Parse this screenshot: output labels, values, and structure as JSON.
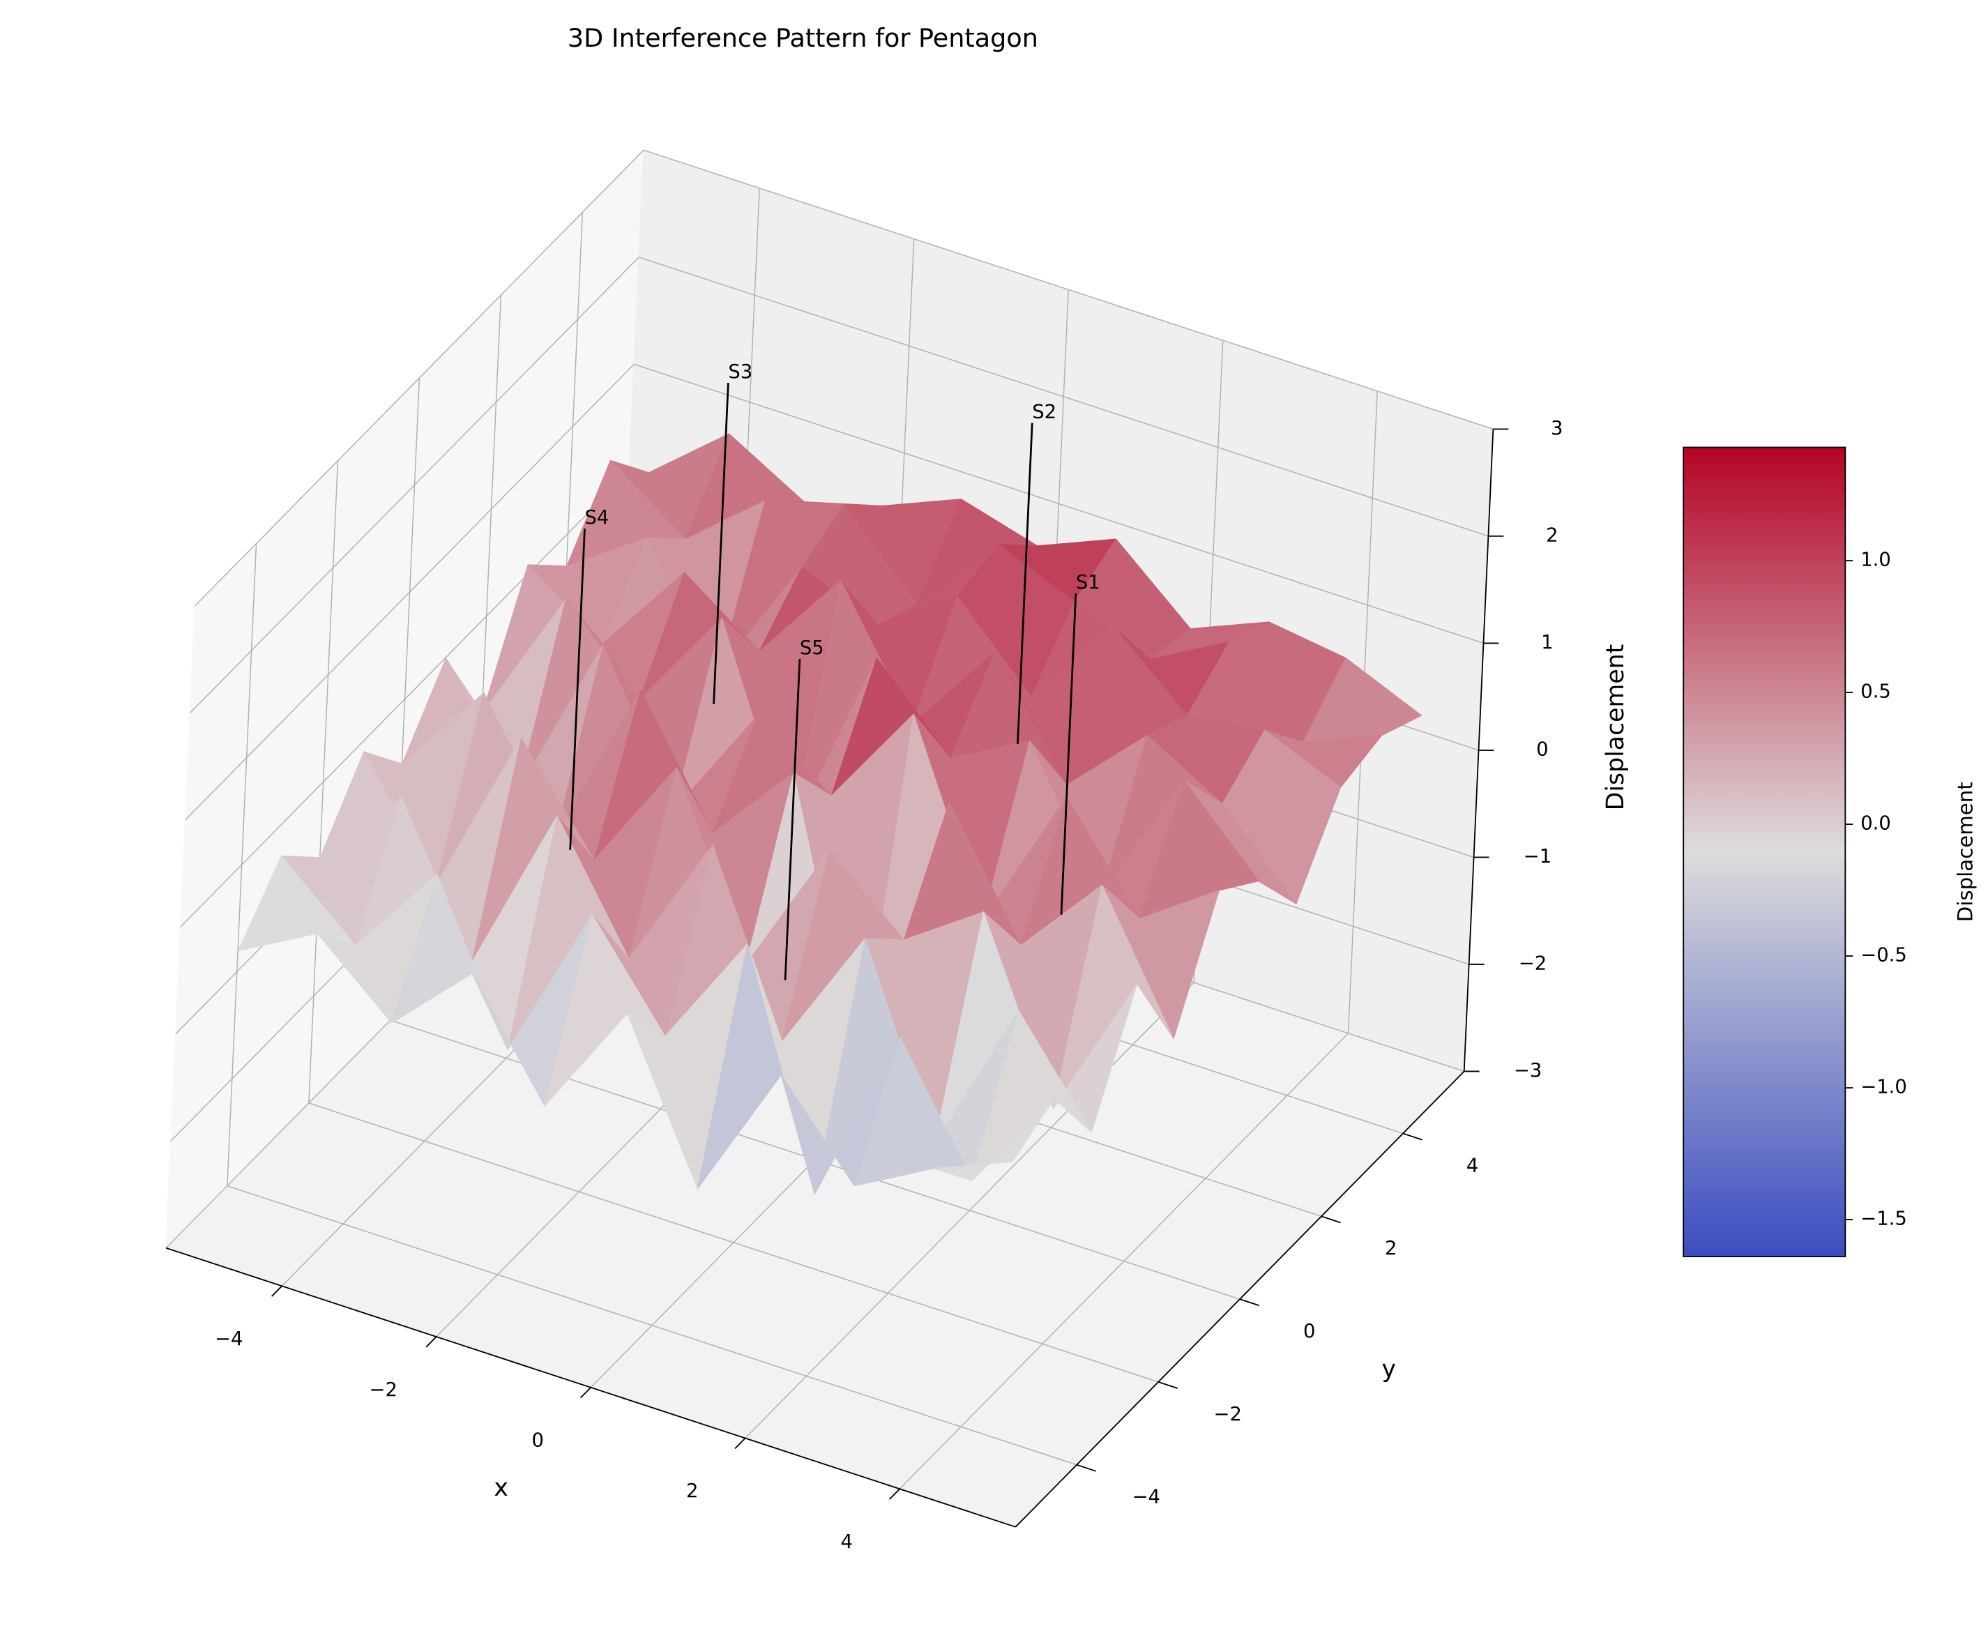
{
  "chart_data": {
    "type": "surface",
    "title": "3D Interference Pattern for Pentagon",
    "xlabel": "x",
    "ylabel": "y",
    "zlabel": "Displacement",
    "x": [
      -5,
      -4,
      -3,
      -2,
      -1,
      0,
      1,
      2,
      3,
      4,
      5
    ],
    "y": [
      -5,
      -4,
      -3,
      -2,
      -1,
      0,
      1,
      2,
      3,
      4,
      5
    ],
    "z": [
      [
        -0.3,
        0.1,
        -0.5,
        0.2,
        -0.8,
        0.3,
        -1.1,
        0.2,
        -0.6,
        -0.2,
        0.1
      ],
      [
        0.2,
        -0.4,
        0.5,
        -0.9,
        0.6,
        -0.3,
        0.8,
        -1.3,
        0.4,
        -0.7,
        0.3
      ],
      [
        -0.2,
        0.6,
        -0.7,
        0.9,
        -0.2,
        1.1,
        -0.5,
        0.7,
        -1.0,
        0.5,
        -0.4
      ],
      [
        0.4,
        -0.6,
        1.0,
        0.1,
        1.2,
        -0.4,
        0.9,
        0.3,
        0.8,
        -0.8,
        0.6
      ],
      [
        -0.1,
        0.8,
        -0.3,
        1.3,
        0.2,
        1.0,
        -1.6,
        1.2,
        0.1,
        0.9,
        -0.3
      ],
      [
        0.5,
        -0.5,
        1.1,
        -0.2,
        0.9,
        0.4,
        1.4,
        -0.3,
        1.1,
        0.2,
        0.7
      ],
      [
        -0.4,
        0.9,
        0.2,
        1.2,
        -0.6,
        1.3,
        0.6,
        1.0,
        -0.2,
        1.1,
        0.4
      ],
      [
        0.6,
        0.1,
        1.0,
        0.5,
        1.4,
        0.3,
        1.2,
        0.2,
        0.9,
        0.5,
        -0.2
      ],
      [
        0.2,
        0.7,
        -0.3,
        0.9,
        0.6,
        1.1,
        0.4,
        1.3,
        0.7,
        0.8,
        0.5
      ],
      [
        0.8,
        0.3,
        0.9,
        1.1,
        0.4,
        1.2,
        0.9,
        0.6,
        1.0,
        0.3,
        0.6
      ],
      [
        0.3,
        0.9,
        0.5,
        0.7,
        1.0,
        0.8,
        1.1,
        0.5,
        0.8,
        0.7,
        0.4
      ]
    ],
    "xlim": [
      -5.5,
      5.5
    ],
    "ylim": [
      -5.5,
      5.5
    ],
    "zlim": [
      -3,
      3
    ],
    "xticks": [
      {
        "value": -4,
        "label": "−4"
      },
      {
        "value": -2,
        "label": "−2"
      },
      0,
      2,
      4
    ],
    "yticks": [
      {
        "value": -4,
        "label": "−4"
      },
      {
        "value": -2,
        "label": "−2"
      },
      0,
      2,
      4
    ],
    "zticks": [
      {
        "value": -3,
        "label": "−3"
      },
      {
        "value": -2,
        "label": "−2"
      },
      {
        "value": -1,
        "label": "−1"
      },
      0,
      1,
      2,
      3
    ],
    "colormap": [
      "#3b4cc0",
      "#dddcdc",
      "#b40426"
    ],
    "clim": [
      -1.64,
      1.43
    ],
    "colorbar_label": "Displacement",
    "colorbar_ticks": [
      {
        "value": -1.5,
        "label": "−1.5"
      },
      {
        "value": -1.0,
        "label": "−1.0"
      },
      {
        "value": -0.5,
        "label": "−0.5"
      },
      {
        "value": 0,
        "label": "0.0"
      },
      0.5,
      {
        "value": 1.0,
        "label": "1.0"
      }
    ],
    "sources": [
      {
        "label": "S1",
        "x": 3,
        "y": 0
      },
      {
        "label": "S2",
        "x": 0.93,
        "y": 2.85
      },
      {
        "label": "S3",
        "x": -2.43,
        "y": 1.76
      },
      {
        "label": "S4",
        "x": -2.43,
        "y": -1.76
      },
      {
        "label": "S5",
        "x": 0.93,
        "y": -2.85
      }
    ],
    "grid": true
  }
}
